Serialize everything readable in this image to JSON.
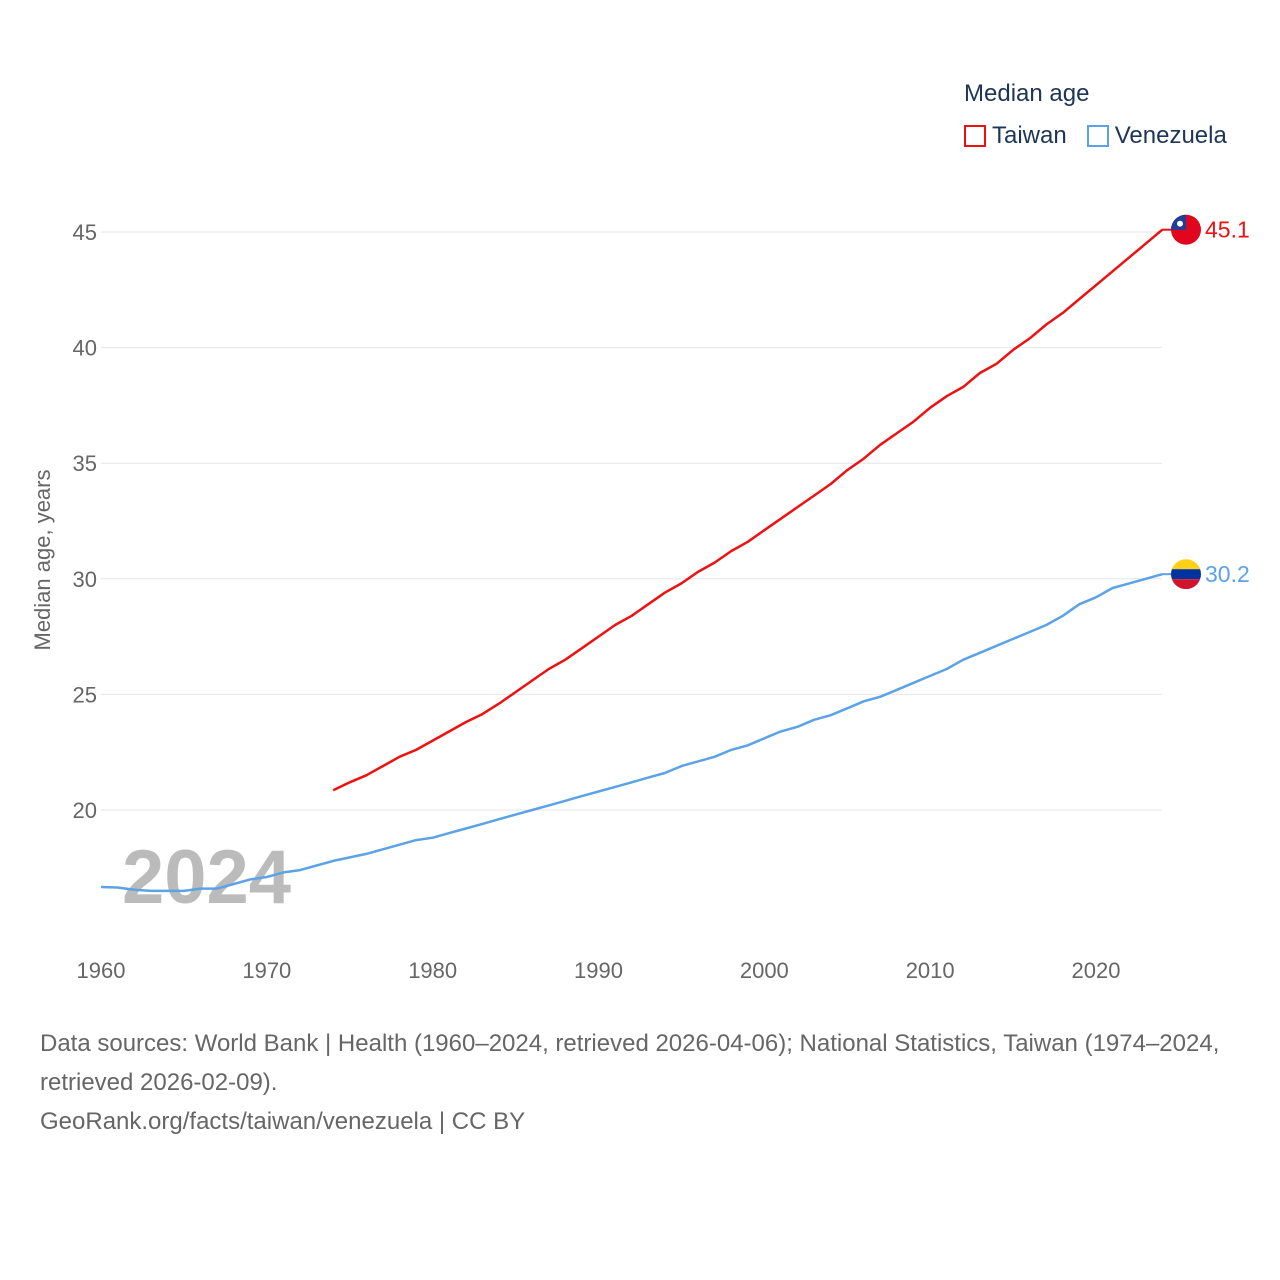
{
  "chart_data": {
    "type": "line",
    "legend_title": "Median age",
    "ylabel": "Median age, years",
    "xlabel": "",
    "ylim": [
      15,
      47
    ],
    "xlim": [
      1960,
      2024
    ],
    "yticks": [
      20,
      25,
      30,
      35,
      40,
      45
    ],
    "xticks": [
      1960,
      1970,
      1980,
      1990,
      2000,
      2010,
      2020
    ],
    "year_label": "2024",
    "grid": true,
    "legend_position": "top-right",
    "series": [
      {
        "name": "Taiwan",
        "color": "#ee1111",
        "end_label": "45.1",
        "flag": "taiwan-flag",
        "x": [
          1974,
          1975,
          1976,
          1977,
          1978,
          1979,
          1980,
          1981,
          1982,
          1983,
          1984,
          1985,
          1986,
          1987,
          1988,
          1989,
          1990,
          1991,
          1992,
          1993,
          1994,
          1995,
          1996,
          1997,
          1998,
          1999,
          2000,
          2001,
          2002,
          2003,
          2004,
          2005,
          2006,
          2007,
          2008,
          2009,
          2010,
          2011,
          2012,
          2013,
          2014,
          2015,
          2016,
          2017,
          2018,
          2019,
          2020,
          2021,
          2022,
          2023,
          2024
        ],
        "y": [
          20.85,
          21.2,
          21.5,
          21.9,
          22.3,
          22.6,
          23.0,
          23.4,
          23.8,
          24.15,
          24.6,
          25.1,
          25.6,
          26.1,
          26.5,
          27.0,
          27.5,
          28.0,
          28.4,
          28.9,
          29.4,
          29.8,
          30.3,
          30.7,
          31.2,
          31.6,
          32.1,
          32.6,
          33.1,
          33.6,
          34.1,
          34.7,
          35.2,
          35.8,
          36.3,
          36.8,
          37.4,
          37.9,
          38.3,
          38.9,
          39.3,
          39.9,
          40.4,
          41.0,
          41.5,
          42.1,
          42.7,
          43.3,
          43.9,
          44.5,
          45.1
        ]
      },
      {
        "name": "Venezuela",
        "color": "#5ba3e6",
        "end_label": "30.2",
        "flag": "venezuela-flag",
        "x": [
          1960,
          1961,
          1962,
          1963,
          1964,
          1965,
          1966,
          1967,
          1968,
          1969,
          1970,
          1971,
          1972,
          1973,
          1974,
          1975,
          1976,
          1977,
          1978,
          1979,
          1980,
          1981,
          1982,
          1983,
          1984,
          1985,
          1986,
          1987,
          1988,
          1989,
          1990,
          1991,
          1992,
          1993,
          1994,
          1995,
          1996,
          1997,
          1998,
          1999,
          2000,
          2001,
          2002,
          2003,
          2004,
          2005,
          2006,
          2007,
          2008,
          2009,
          2010,
          2011,
          2012,
          2013,
          2014,
          2015,
          2016,
          2017,
          2018,
          2019,
          2020,
          2021,
          2022,
          2023,
          2024
        ],
        "y": [
          16.67,
          16.65,
          16.55,
          16.5,
          16.5,
          16.5,
          16.6,
          16.6,
          16.8,
          17.0,
          17.1,
          17.3,
          17.4,
          17.6,
          17.8,
          17.95,
          18.1,
          18.3,
          18.5,
          18.7,
          18.8,
          19.0,
          19.2,
          19.4,
          19.6,
          19.8,
          20.0,
          20.2,
          20.4,
          20.6,
          20.8,
          21.0,
          21.2,
          21.4,
          21.6,
          21.9,
          22.1,
          22.3,
          22.6,
          22.8,
          23.1,
          23.4,
          23.6,
          23.9,
          24.1,
          24.4,
          24.7,
          24.9,
          25.2,
          25.5,
          25.8,
          26.1,
          26.5,
          26.8,
          27.1,
          27.4,
          27.7,
          28.0,
          28.4,
          28.9,
          29.2,
          29.6,
          29.8,
          30.0,
          30.2
        ]
      }
    ]
  },
  "footer": {
    "sources": "Data sources: World Bank | Health (1960–2024, retrieved 2026-04-06); National Statistics, Taiwan (1974–2024, retrieved 2026-02-09).",
    "credit": "GeoRank.org/facts/taiwan/venezuela | CC BY"
  }
}
